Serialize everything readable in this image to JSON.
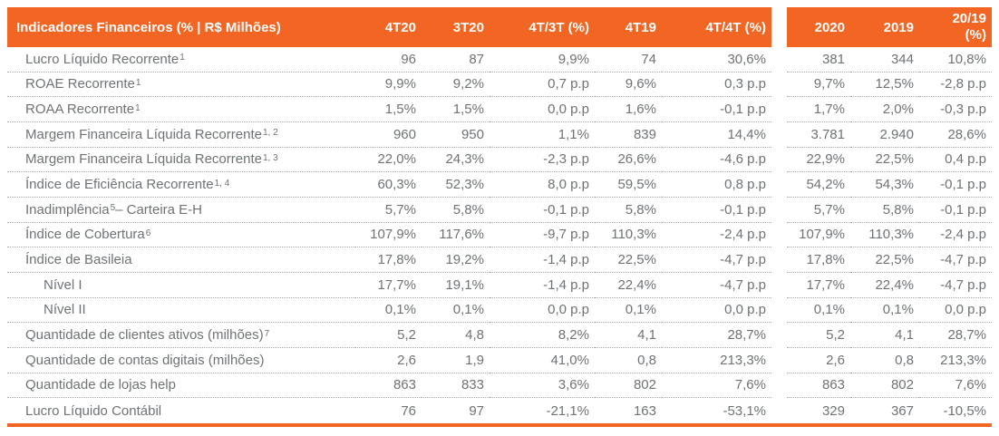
{
  "header": {
    "title": "Indicadores Financeiros (% | R$ Milhões)",
    "quarter_cols": [
      "4T20",
      "3T20",
      "4T/3T (%)",
      "4T19",
      "4T/4T (%)"
    ],
    "annual_cols": [
      "2020",
      "2019",
      "20/19\n(%)"
    ]
  },
  "rows": [
    {
      "pre": "Lucro Líquido Recorrente ",
      "sup": "1",
      "post": "",
      "indent": 0,
      "q": [
        "96",
        "87",
        "9,9%",
        "74",
        "30,6%"
      ],
      "a": [
        "381",
        "344",
        "10,8%"
      ]
    },
    {
      "pre": "ROAE Recorrente ",
      "sup": "1",
      "post": "",
      "indent": 0,
      "q": [
        "9,9%",
        "9,2%",
        "0,7 p.p",
        "9,6%",
        "0,3 p.p"
      ],
      "a": [
        "9,7%",
        "12,5%",
        "-2,8 p.p"
      ]
    },
    {
      "pre": "ROAA Recorrente ",
      "sup": "1",
      "post": "",
      "indent": 0,
      "q": [
        "1,5%",
        "1,5%",
        "0,0 p.p",
        "1,6%",
        "-0,1 p.p"
      ],
      "a": [
        "1,7%",
        "2,0%",
        "-0,3 p.p"
      ]
    },
    {
      "pre": "Margem Financeira Líquida Recorrente ",
      "sup": "1, 2",
      "post": "",
      "indent": 0,
      "q": [
        "960",
        "950",
        "1,1%",
        "839",
        "14,4%"
      ],
      "a": [
        "3.781",
        "2.940",
        "28,6%"
      ]
    },
    {
      "pre": "Margem Financeira Líquida Recorrente ",
      "sup": "1, 3",
      "post": "",
      "indent": 0,
      "q": [
        "22,0%",
        "24,3%",
        "-2,3 p.p",
        "26,6%",
        "-4,6 p.p"
      ],
      "a": [
        "22,9%",
        "22,5%",
        "0,4 p.p"
      ]
    },
    {
      "pre": "Índice de Eficiência Recorrente ",
      "sup": "1, 4",
      "post": "",
      "indent": 0,
      "q": [
        "60,3%",
        "52,3%",
        "8,0 p.p",
        "59,5%",
        "0,8 p.p"
      ],
      "a": [
        "54,2%",
        "54,3%",
        "-0,1 p.p"
      ]
    },
    {
      "pre": "Inadimplência ",
      "sup": "5",
      "post": " – Carteira E-H",
      "indent": 0,
      "q": [
        "5,7%",
        "5,8%",
        "-0,1 p.p",
        "5,8%",
        "-0,1 p.p"
      ],
      "a": [
        "5,7%",
        "5,8%",
        "-0,1 p.p"
      ]
    },
    {
      "pre": "Índice de Cobertura ",
      "sup": "6",
      "post": "",
      "indent": 0,
      "q": [
        "107,9%",
        "117,6%",
        "-9,7 p.p",
        "110,3%",
        "-2,4 p.p"
      ],
      "a": [
        "107,9%",
        "110,3%",
        "-2,4 p.p"
      ]
    },
    {
      "pre": "Índice de Basileia",
      "sup": "",
      "post": "",
      "indent": 0,
      "q": [
        "17,8%",
        "19,2%",
        "-1,4 p.p",
        "22,5%",
        "-4,7 p.p"
      ],
      "a": [
        "17,8%",
        "22,5%",
        "-4,7 p.p"
      ]
    },
    {
      "pre": "Nível I",
      "sup": "",
      "post": "",
      "indent": 1,
      "q": [
        "17,7%",
        "19,1%",
        "-1,4 p.p",
        "22,4%",
        "-4,7 p.p"
      ],
      "a": [
        "17,7%",
        "22,4%",
        "-4,7 p.p"
      ]
    },
    {
      "pre": "Nível II",
      "sup": "",
      "post": "",
      "indent": 1,
      "q": [
        "0,1%",
        "0,1%",
        "0,0 p.p",
        "0,1%",
        "0,0 p.p"
      ],
      "a": [
        "0,1%",
        "0,1%",
        "0,0 p.p"
      ]
    },
    {
      "pre": "Quantidade de clientes ativos (milhões) ",
      "sup": "7",
      "post": "",
      "indent": 0,
      "q": [
        "5,2",
        "4,8",
        "8,2%",
        "4,1",
        "28,7%"
      ],
      "a": [
        "5,2",
        "4,1",
        "28,7%"
      ]
    },
    {
      "pre": "Quantidade de contas digitais (milhões)",
      "sup": "",
      "post": "",
      "indent": 0,
      "q": [
        "2,6",
        "1,9",
        "41,0%",
        "0,8",
        "213,3%"
      ],
      "a": [
        "2,6",
        "0,8",
        "213,3%"
      ]
    },
    {
      "pre": "Quantidade de lojas help",
      "sup": "",
      "post": "",
      "indent": 0,
      "q": [
        "863",
        "833",
        "3,6%",
        "802",
        "7,6%"
      ],
      "a": [
        "863",
        "802",
        "7,6%"
      ]
    },
    {
      "pre": "Lucro Líquido Contábil",
      "sup": "",
      "post": "",
      "indent": 0,
      "q": [
        "76",
        "97",
        "-21,1%",
        "163",
        "-53,1%"
      ],
      "a": [
        "329",
        "367",
        "-10,5%"
      ]
    }
  ],
  "colors": {
    "accent_orange": "#F26522",
    "text_gray": "#6E7376",
    "separator_gray": "#A8ACAE",
    "header_text": "#FFFFFF"
  }
}
